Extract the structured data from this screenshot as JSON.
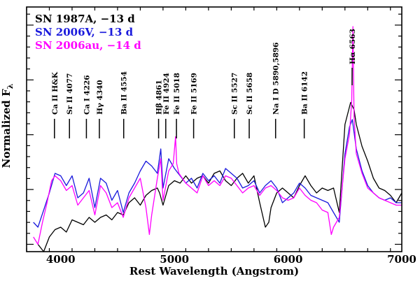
{
  "chart_data": {
    "type": "line",
    "xlabel": "Rest Wavelength (Angstrom)",
    "ylabel": "Normalized F",
    "ylabel_sub": "λ",
    "xlim": [
      3700,
      7000
    ],
    "ylim": [
      0,
      1
    ],
    "x_ticks": [
      4000,
      5000,
      6000,
      7000
    ],
    "x_minor_step": 200,
    "y_major_ticks": [
      0.03,
      0.254,
      0.481,
      0.708,
      0.935
    ],
    "y_minor_count": 4,
    "legend": [
      {
        "name": "SN 1987A, −13 d",
        "color": "#000000"
      },
      {
        "name": "SN 2006V, −13 d",
        "color": "#1a1adc"
      },
      {
        "name": "SN 2006au, −14 d",
        "color": "#ff00ff"
      }
    ],
    "line_ids": [
      {
        "label": "Ca II H&K",
        "x": 3945
      },
      {
        "label": "Sr II 4077",
        "x": 4077
      },
      {
        "label": "Ca I 4226",
        "x": 4226
      },
      {
        "label": "Hγ 4340",
        "x": 4340
      },
      {
        "label": "Ba II 4554",
        "x": 4554
      },
      {
        "label": "Hβ 4861",
        "x": 4861
      },
      {
        "label": "Fe II 4924",
        "x": 4924
      },
      {
        "label": "Fe II 5018",
        "x": 5018
      },
      {
        "label": "Fe II 5169",
        "x": 5169
      },
      {
        "label": "Sc II 5527",
        "x": 5527
      },
      {
        "label": "Sc II 5658",
        "x": 5658
      },
      {
        "label": "Na I D 5890,5896",
        "x": 5890
      },
      {
        "label": "Ba II 6142",
        "x": 6142
      },
      {
        "label": "Hα 6563",
        "x": 6563
      }
    ],
    "series": [
      {
        "name": "SN 1987A, −13 d",
        "color": "#000000",
        "x": [
          3800,
          3850,
          3900,
          3950,
          4000,
          4050,
          4100,
          4150,
          4200,
          4250,
          4300,
          4350,
          4400,
          4450,
          4500,
          4550,
          4600,
          4650,
          4700,
          4750,
          4800,
          4850,
          4870,
          4900,
          4950,
          5000,
          5050,
          5100,
          5150,
          5200,
          5250,
          5300,
          5350,
          5400,
          5450,
          5500,
          5550,
          5600,
          5650,
          5700,
          5750,
          5800,
          5830,
          5850,
          5900,
          5950,
          6000,
          6050,
          6100,
          6150,
          6200,
          6250,
          6300,
          6350,
          6400,
          6450,
          6500,
          6550,
          6580,
          6600,
          6650,
          6700,
          6750,
          6800,
          6850,
          6900,
          6950,
          7000
        ],
        "y": [
          0.03,
          0.0,
          0.06,
          0.09,
          0.1,
          0.08,
          0.13,
          0.12,
          0.11,
          0.14,
          0.12,
          0.14,
          0.15,
          0.13,
          0.16,
          0.15,
          0.2,
          0.22,
          0.19,
          0.23,
          0.25,
          0.26,
          0.24,
          0.19,
          0.27,
          0.29,
          0.28,
          0.31,
          0.28,
          0.3,
          0.31,
          0.28,
          0.32,
          0.33,
          0.29,
          0.27,
          0.3,
          0.32,
          0.28,
          0.31,
          0.2,
          0.1,
          0.12,
          0.18,
          0.24,
          0.26,
          0.24,
          0.22,
          0.27,
          0.31,
          0.27,
          0.24,
          0.26,
          0.25,
          0.26,
          0.16,
          0.52,
          0.61,
          0.58,
          0.52,
          0.43,
          0.37,
          0.3,
          0.26,
          0.25,
          0.23,
          0.2,
          0.24
        ]
      },
      {
        "name": "SN 2006V, −13 d",
        "color": "#1a1adc",
        "x": [
          3760,
          3800,
          3850,
          3900,
          3950,
          4000,
          4050,
          4100,
          4150,
          4200,
          4250,
          4300,
          4350,
          4400,
          4450,
          4500,
          4550,
          4600,
          4650,
          4700,
          4750,
          4800,
          4850,
          4880,
          4900,
          4950,
          5000,
          5050,
          5100,
          5150,
          5200,
          5250,
          5300,
          5350,
          5400,
          5450,
          5500,
          5550,
          5600,
          5650,
          5700,
          5750,
          5800,
          5850,
          5900,
          5950,
          6000,
          6050,
          6100,
          6150,
          6200,
          6250,
          6300,
          6350,
          6400,
          6450,
          6500,
          6540,
          6565,
          6600,
          6650,
          6700,
          6750,
          6800,
          6850,
          6900,
          6950,
          7000
        ],
        "y": [
          0.12,
          0.1,
          0.17,
          0.24,
          0.32,
          0.31,
          0.27,
          0.31,
          0.22,
          0.24,
          0.3,
          0.18,
          0.3,
          0.28,
          0.21,
          0.25,
          0.16,
          0.24,
          0.28,
          0.33,
          0.37,
          0.35,
          0.32,
          0.42,
          0.26,
          0.38,
          0.34,
          0.31,
          0.28,
          0.3,
          0.26,
          0.32,
          0.29,
          0.31,
          0.28,
          0.34,
          0.32,
          0.3,
          0.26,
          0.27,
          0.29,
          0.24,
          0.27,
          0.29,
          0.26,
          0.2,
          0.22,
          0.24,
          0.28,
          0.26,
          0.23,
          0.22,
          0.21,
          0.2,
          0.16,
          0.12,
          0.4,
          0.51,
          0.54,
          0.42,
          0.33,
          0.27,
          0.24,
          0.22,
          0.21,
          0.22,
          0.2,
          0.2
        ]
      },
      {
        "name": "SN 2006au, −14 d",
        "color": "#ff00ff",
        "x": [
          3760,
          3800,
          3840,
          3880,
          3920,
          3950,
          4000,
          4050,
          4100,
          4150,
          4200,
          4250,
          4300,
          4350,
          4400,
          4450,
          4500,
          4550,
          4600,
          4650,
          4700,
          4750,
          4780,
          4800,
          4850,
          4880,
          4900,
          4950,
          4990,
          5010,
          5020,
          5040,
          5100,
          5150,
          5200,
          5250,
          5300,
          5350,
          5400,
          5450,
          5500,
          5550,
          5600,
          5650,
          5700,
          5750,
          5800,
          5850,
          5900,
          5950,
          6000,
          6050,
          6100,
          6150,
          6200,
          6250,
          6300,
          6350,
          6380,
          6400,
          6450,
          6500,
          6540,
          6560,
          6570,
          6580,
          6600,
          6650,
          6700,
          6750,
          6800,
          6850,
          6900,
          6950,
          7000
        ],
        "y": [
          0.06,
          0.03,
          0.12,
          0.2,
          0.29,
          0.31,
          0.29,
          0.25,
          0.27,
          0.19,
          0.22,
          0.25,
          0.15,
          0.27,
          0.24,
          0.18,
          0.2,
          0.14,
          0.22,
          0.26,
          0.3,
          0.18,
          0.07,
          0.15,
          0.3,
          0.38,
          0.21,
          0.33,
          0.36,
          0.47,
          0.36,
          0.32,
          0.28,
          0.26,
          0.24,
          0.31,
          0.27,
          0.29,
          0.27,
          0.31,
          0.3,
          0.27,
          0.24,
          0.26,
          0.27,
          0.23,
          0.26,
          0.27,
          0.25,
          0.22,
          0.21,
          0.22,
          0.26,
          0.23,
          0.21,
          0.2,
          0.17,
          0.16,
          0.07,
          0.1,
          0.14,
          0.38,
          0.48,
          0.62,
          0.92,
          0.55,
          0.4,
          0.32,
          0.26,
          0.24,
          0.22,
          0.21,
          0.2,
          0.19,
          0.19
        ]
      }
    ]
  }
}
